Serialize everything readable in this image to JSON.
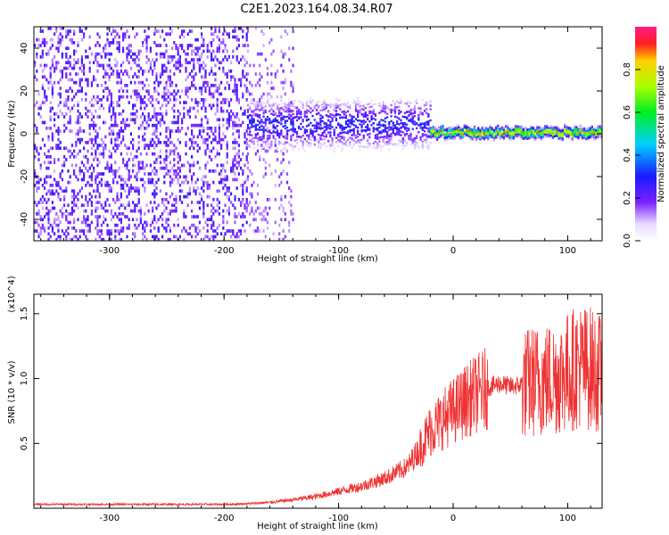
{
  "title": "C2E1.2023.164.08.34.R07",
  "chart_data": [
    {
      "type": "heatmap",
      "xlabel": "Height of straight line (km)",
      "ylabel": "Frequency (Hz)",
      "xlim": [
        -366,
        130
      ],
      "ylim": [
        -50,
        50
      ],
      "x_ticks": [
        -300,
        -200,
        -100,
        0,
        100
      ],
      "x_tick_labels": [
        "-300",
        "-200",
        "-100",
        "0",
        "100"
      ],
      "y_ticks": [
        -40,
        -20,
        0,
        20,
        40
      ],
      "y_tick_labels": [
        "-40",
        "-20",
        "0",
        "20",
        "40"
      ],
      "colorbar": {
        "label": "Normalized spectral amplitude",
        "range": [
          0,
          1
        ],
        "ticks": [
          0.0,
          0.2,
          0.4,
          0.6,
          0.8
        ],
        "tick_labels": [
          "0.0",
          "0.2",
          "0.4",
          "0.6",
          "0.8"
        ],
        "colormap": "rainbow (white-purple-blue-cyan-green-yellow-red-magenta)"
      },
      "features": [
        {
          "x_range": [
            -366,
            -180
          ],
          "frequency_range": [
            -50,
            50
          ],
          "amplitude": 0.1,
          "description": "broadband noise"
        },
        {
          "x_range": [
            -180,
            -140
          ],
          "frequency_range": [
            -50,
            50
          ],
          "amplitude": 0.05,
          "description": "fading noise"
        },
        {
          "x_range": [
            -180,
            -20
          ],
          "center_frequency": 5,
          "bandwidth": 20,
          "amplitude": 0.3
        },
        {
          "x_range": [
            -20,
            130
          ],
          "center_frequency": 1,
          "bandwidth": 4,
          "amplitude": 0.85
        }
      ]
    },
    {
      "type": "line",
      "xlabel": "Height of straight line (km)",
      "ylabel": "SNR (10 * v/v)",
      "y_multiplier": "(x10^4)",
      "xlim": [
        -366,
        130
      ],
      "ylim": [
        0,
        16500
      ],
      "x_ticks": [
        -300,
        -200,
        -100,
        0,
        100
      ],
      "x_tick_labels": [
        "-300",
        "-200",
        "-100",
        "0",
        "100"
      ],
      "y_ticks": [
        5000,
        10000,
        15000
      ],
      "y_tick_labels": [
        "0.5",
        "1.0",
        "1.5"
      ],
      "series": [
        {
          "color": "#ee3333",
          "x": [
            -366,
            -300,
            -250,
            -200,
            -180,
            -160,
            -140,
            -120,
            -100,
            -80,
            -60,
            -40,
            -30,
            -20,
            -10,
            0,
            10,
            20,
            30,
            40,
            50,
            60,
            70,
            80,
            90,
            100,
            110,
            120,
            130
          ],
          "y": [
            300,
            300,
            300,
            300,
            350,
            450,
            650,
            900,
            1300,
            1700,
            2300,
            3200,
            4500,
            6000,
            6800,
            7500,
            8200,
            8800,
            9300,
            9600,
            9400,
            9500,
            9800,
            9900,
            10100,
            10500,
            11000,
            10800,
            10300
          ]
        }
      ]
    }
  ]
}
